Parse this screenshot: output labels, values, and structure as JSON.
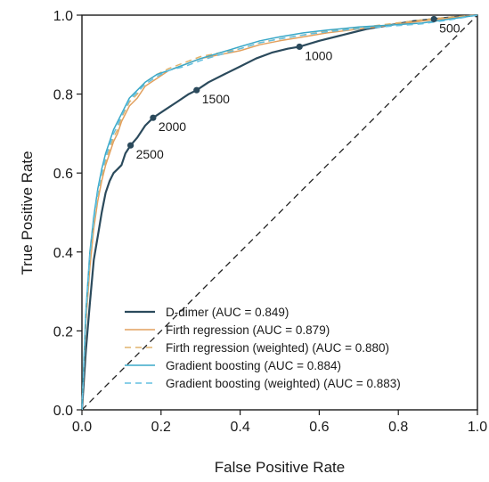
{
  "chart_data": {
    "type": "line",
    "xlabel": "False Positive Rate",
    "ylabel": "True Positive Rate",
    "xlim": [
      0.0,
      1.0
    ],
    "ylim": [
      0.0,
      1.0
    ],
    "xticks": [
      "0.0",
      "0.2",
      "0.4",
      "0.6",
      "0.8",
      "1.0"
    ],
    "yticks": [
      "0.0",
      "0.2",
      "0.4",
      "0.6",
      "0.8",
      "1.0"
    ],
    "grid": false,
    "legend_position": "lower-right",
    "diagonal_reference": true,
    "series": [
      {
        "name": "D-dimer (AUC = 0.849)",
        "color": "#2b4a5c",
        "dash": "solid",
        "points": [
          [
            0,
            0
          ],
          [
            0.01,
            0.15
          ],
          [
            0.02,
            0.27
          ],
          [
            0.03,
            0.38
          ],
          [
            0.04,
            0.44
          ],
          [
            0.05,
            0.5
          ],
          [
            0.06,
            0.55
          ],
          [
            0.07,
            0.58
          ],
          [
            0.08,
            0.6
          ],
          [
            0.09,
            0.61
          ],
          [
            0.1,
            0.62
          ],
          [
            0.11,
            0.65
          ],
          [
            0.123,
            0.67
          ],
          [
            0.14,
            0.69
          ],
          [
            0.16,
            0.72
          ],
          [
            0.18,
            0.74
          ],
          [
            0.21,
            0.76
          ],
          [
            0.24,
            0.78
          ],
          [
            0.27,
            0.8
          ],
          [
            0.29,
            0.81
          ],
          [
            0.32,
            0.83
          ],
          [
            0.36,
            0.85
          ],
          [
            0.4,
            0.87
          ],
          [
            0.44,
            0.89
          ],
          [
            0.48,
            0.905
          ],
          [
            0.52,
            0.915
          ],
          [
            0.55,
            0.92
          ],
          [
            0.6,
            0.935
          ],
          [
            0.66,
            0.95
          ],
          [
            0.72,
            0.965
          ],
          [
            0.78,
            0.975
          ],
          [
            0.84,
            0.985
          ],
          [
            0.89,
            0.99
          ],
          [
            0.94,
            0.995
          ],
          [
            1.0,
            1.0
          ]
        ]
      },
      {
        "name": "Firth regression (AUC = 0.879)",
        "color": "#e2a05e",
        "dash": "solid",
        "points": [
          [
            0,
            0
          ],
          [
            0.01,
            0.22
          ],
          [
            0.02,
            0.36
          ],
          [
            0.03,
            0.46
          ],
          [
            0.04,
            0.53
          ],
          [
            0.05,
            0.58
          ],
          [
            0.06,
            0.62
          ],
          [
            0.07,
            0.65
          ],
          [
            0.08,
            0.68
          ],
          [
            0.09,
            0.7
          ],
          [
            0.1,
            0.73
          ],
          [
            0.12,
            0.77
          ],
          [
            0.14,
            0.79
          ],
          [
            0.16,
            0.82
          ],
          [
            0.19,
            0.84
          ],
          [
            0.22,
            0.86
          ],
          [
            0.26,
            0.875
          ],
          [
            0.3,
            0.89
          ],
          [
            0.35,
            0.9
          ],
          [
            0.4,
            0.91
          ],
          [
            0.45,
            0.925
          ],
          [
            0.5,
            0.935
          ],
          [
            0.56,
            0.945
          ],
          [
            0.62,
            0.955
          ],
          [
            0.7,
            0.965
          ],
          [
            0.78,
            0.975
          ],
          [
            0.86,
            0.985
          ],
          [
            0.93,
            0.993
          ],
          [
            1.0,
            1.0
          ]
        ]
      },
      {
        "name": "Firth regression (weighted) (AUC = 0.880)",
        "color": "#e0b36e",
        "dash": "dashed",
        "points": [
          [
            0,
            0
          ],
          [
            0.01,
            0.23
          ],
          [
            0.02,
            0.37
          ],
          [
            0.03,
            0.47
          ],
          [
            0.04,
            0.54
          ],
          [
            0.05,
            0.59
          ],
          [
            0.06,
            0.63
          ],
          [
            0.07,
            0.66
          ],
          [
            0.08,
            0.69
          ],
          [
            0.09,
            0.71
          ],
          [
            0.1,
            0.74
          ],
          [
            0.12,
            0.78
          ],
          [
            0.14,
            0.8
          ],
          [
            0.16,
            0.83
          ],
          [
            0.19,
            0.85
          ],
          [
            0.22,
            0.865
          ],
          [
            0.26,
            0.88
          ],
          [
            0.3,
            0.895
          ],
          [
            0.35,
            0.905
          ],
          [
            0.4,
            0.915
          ],
          [
            0.45,
            0.93
          ],
          [
            0.5,
            0.94
          ],
          [
            0.56,
            0.95
          ],
          [
            0.62,
            0.96
          ],
          [
            0.7,
            0.968
          ],
          [
            0.78,
            0.978
          ],
          [
            0.86,
            0.988
          ],
          [
            0.93,
            0.995
          ],
          [
            1.0,
            1.0
          ]
        ]
      },
      {
        "name": "Gradient boosting (AUC = 0.884)",
        "color": "#3aa8c8",
        "dash": "solid",
        "points": [
          [
            0,
            0
          ],
          [
            0.01,
            0.25
          ],
          [
            0.02,
            0.4
          ],
          [
            0.03,
            0.49
          ],
          [
            0.04,
            0.56
          ],
          [
            0.05,
            0.61
          ],
          [
            0.06,
            0.65
          ],
          [
            0.07,
            0.68
          ],
          [
            0.08,
            0.71
          ],
          [
            0.09,
            0.73
          ],
          [
            0.1,
            0.75
          ],
          [
            0.12,
            0.79
          ],
          [
            0.14,
            0.81
          ],
          [
            0.16,
            0.83
          ],
          [
            0.19,
            0.85
          ],
          [
            0.22,
            0.86
          ],
          [
            0.26,
            0.875
          ],
          [
            0.3,
            0.89
          ],
          [
            0.35,
            0.905
          ],
          [
            0.4,
            0.92
          ],
          [
            0.45,
            0.935
          ],
          [
            0.5,
            0.945
          ],
          [
            0.56,
            0.955
          ],
          [
            0.62,
            0.962
          ],
          [
            0.7,
            0.97
          ],
          [
            0.78,
            0.975
          ],
          [
            0.86,
            0.98
          ],
          [
            0.93,
            0.99
          ],
          [
            1.0,
            1.0
          ]
        ]
      },
      {
        "name": "Gradient boosting (weighted) (AUC = 0.883)",
        "color": "#62bfe0",
        "dash": "dashed",
        "points": [
          [
            0,
            0
          ],
          [
            0.01,
            0.24
          ],
          [
            0.02,
            0.39
          ],
          [
            0.03,
            0.48
          ],
          [
            0.04,
            0.55
          ],
          [
            0.05,
            0.6
          ],
          [
            0.06,
            0.64
          ],
          [
            0.07,
            0.67
          ],
          [
            0.08,
            0.7
          ],
          [
            0.09,
            0.72
          ],
          [
            0.1,
            0.745
          ],
          [
            0.12,
            0.785
          ],
          [
            0.14,
            0.805
          ],
          [
            0.16,
            0.825
          ],
          [
            0.19,
            0.845
          ],
          [
            0.22,
            0.86
          ],
          [
            0.26,
            0.87
          ],
          [
            0.3,
            0.885
          ],
          [
            0.35,
            0.9
          ],
          [
            0.4,
            0.915
          ],
          [
            0.45,
            0.93
          ],
          [
            0.5,
            0.94
          ],
          [
            0.56,
            0.95
          ],
          [
            0.62,
            0.958
          ],
          [
            0.7,
            0.966
          ],
          [
            0.78,
            0.972
          ],
          [
            0.86,
            0.978
          ],
          [
            0.93,
            0.988
          ],
          [
            1.0,
            1.0
          ]
        ]
      }
    ],
    "annotations": [
      {
        "label": "2500",
        "x": 0.123,
        "y": 0.67
      },
      {
        "label": "2000",
        "x": 0.18,
        "y": 0.74
      },
      {
        "label": "1500",
        "x": 0.29,
        "y": 0.81
      },
      {
        "label": "1000",
        "x": 0.55,
        "y": 0.92
      },
      {
        "label": "500",
        "x": 0.89,
        "y": 0.99
      }
    ]
  }
}
